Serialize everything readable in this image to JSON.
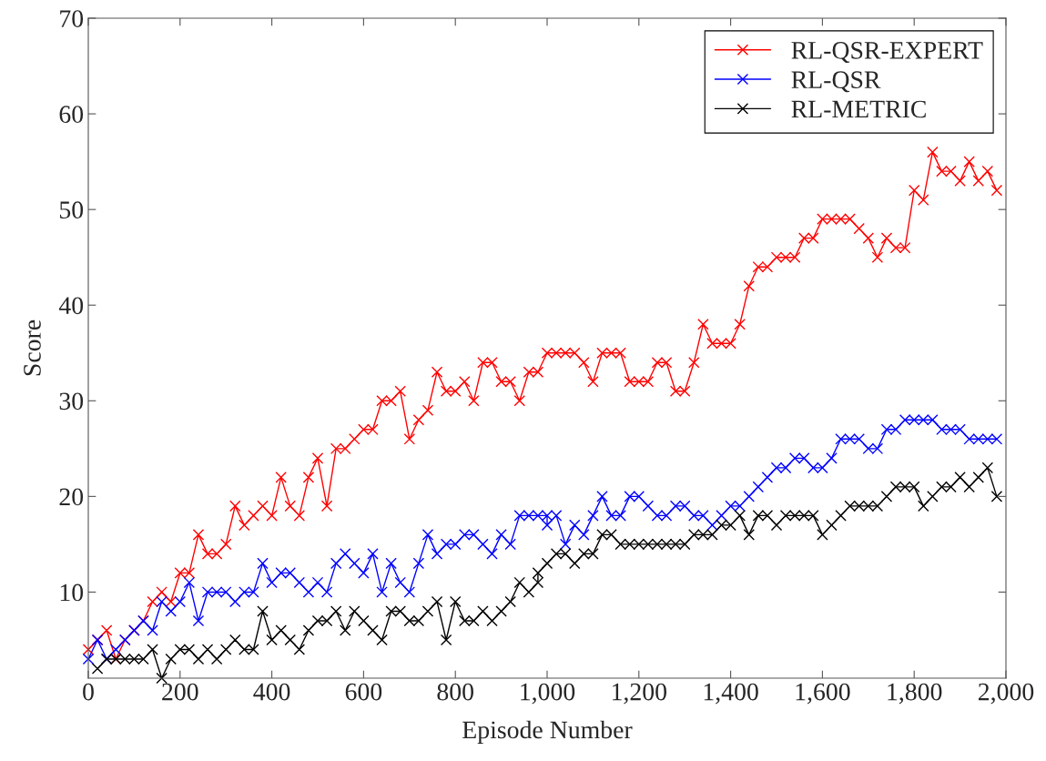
{
  "chart_data": {
    "type": "line",
    "xlabel": "Episode Number",
    "ylabel": "Score",
    "x": [
      0,
      20,
      40,
      60,
      80,
      100,
      120,
      140,
      160,
      180,
      200,
      220,
      240,
      260,
      280,
      300,
      320,
      340,
      360,
      380,
      400,
      420,
      440,
      460,
      480,
      500,
      520,
      540,
      560,
      580,
      600,
      620,
      640,
      660,
      680,
      700,
      720,
      740,
      760,
      780,
      800,
      820,
      840,
      860,
      880,
      900,
      920,
      940,
      960,
      980,
      1000,
      1020,
      1040,
      1060,
      1080,
      1100,
      1120,
      1140,
      1160,
      1180,
      1200,
      1220,
      1240,
      1260,
      1280,
      1300,
      1320,
      1340,
      1360,
      1380,
      1400,
      1420,
      1440,
      1460,
      1480,
      1500,
      1520,
      1540,
      1560,
      1580,
      1600,
      1620,
      1640,
      1660,
      1680,
      1700,
      1720,
      1740,
      1760,
      1780,
      1800,
      1820,
      1840,
      1860,
      1880,
      1900,
      1920,
      1940,
      1960,
      1980
    ],
    "series": [
      {
        "name": "RL-QSR-EXPERT",
        "color": "#ff0000",
        "values": [
          4,
          5,
          6,
          3,
          5,
          6,
          7,
          9,
          10,
          9,
          12,
          12,
          16,
          14,
          14,
          15,
          19,
          17,
          18,
          19,
          18,
          22,
          19,
          18,
          22,
          24,
          19,
          25,
          25,
          26,
          27,
          27,
          30,
          30,
          31,
          26,
          28,
          29,
          33,
          31,
          31,
          32,
          30,
          34,
          34,
          32,
          32,
          30,
          33,
          33,
          35,
          35,
          35,
          35,
          34,
          32,
          35,
          35,
          35,
          32,
          32,
          32,
          34,
          34,
          31,
          31,
          34,
          38,
          36,
          36,
          36,
          38,
          42,
          44,
          44,
          45,
          45,
          45,
          47,
          47,
          49,
          49,
          49,
          49,
          48,
          47,
          45,
          47,
          46,
          46,
          52,
          51,
          56,
          54,
          54,
          53,
          55,
          53,
          54,
          52
        ]
      },
      {
        "name": "RL-QSR",
        "color": "#0000ff",
        "x": [
          0,
          20,
          40,
          60,
          80,
          100,
          120,
          140,
          160,
          180,
          200,
          220,
          240,
          260,
          280,
          300,
          320,
          340,
          360,
          380,
          400,
          420,
          440,
          460,
          480,
          500,
          520,
          540,
          560,
          580,
          600,
          620,
          640,
          660,
          680,
          700,
          720,
          740,
          760,
          780,
          800,
          820,
          840,
          860,
          880,
          900,
          920,
          940,
          960,
          980,
          1000,
          1000,
          1020,
          1040,
          1060,
          1080,
          1100,
          1120,
          1140,
          1160,
          1180,
          1200,
          1220,
          1240,
          1260,
          1280,
          1300,
          1320,
          1340,
          1360,
          1380,
          1400,
          1420,
          1440,
          1460,
          1480,
          1500,
          1520,
          1540,
          1560,
          1580,
          1600,
          1620,
          1640,
          1660,
          1680,
          1700,
          1720,
          1740,
          1760,
          1780,
          1800,
          1820,
          1840,
          1860,
          1880,
          1900,
          1920,
          1940,
          1960,
          1980
        ],
        "values": [
          3,
          5,
          3,
          4,
          5,
          6,
          7,
          6,
          9,
          8,
          9,
          11,
          7,
          10,
          10,
          10,
          9,
          10,
          10,
          13,
          11,
          12,
          12,
          11,
          10,
          11,
          10,
          13,
          14,
          13,
          12,
          14,
          10,
          13,
          11,
          10,
          13,
          16,
          14,
          15,
          15,
          16,
          16,
          15,
          14,
          16,
          15,
          18,
          18,
          18,
          18,
          17,
          18,
          15,
          17,
          16,
          18,
          20,
          18,
          18,
          20,
          20,
          19,
          18,
          18,
          19,
          19,
          18,
          18,
          17,
          18,
          19,
          19,
          20,
          21,
          22,
          23,
          23,
          24,
          24,
          23,
          23,
          24,
          26,
          26,
          26,
          25,
          25,
          27,
          27,
          28,
          28,
          28,
          28,
          27,
          27,
          27,
          26,
          26,
          26,
          26
        ]
      },
      {
        "name": "RL-METRIC",
        "color": "#000000",
        "x": [
          20,
          40,
          60,
          80,
          100,
          120,
          140,
          160,
          180,
          200,
          220,
          240,
          260,
          280,
          300,
          320,
          340,
          360,
          380,
          400,
          420,
          440,
          460,
          480,
          500,
          520,
          540,
          560,
          580,
          600,
          620,
          640,
          660,
          680,
          700,
          720,
          740,
          760,
          780,
          800,
          820,
          840,
          860,
          880,
          900,
          920,
          940,
          960,
          980,
          980,
          1000,
          1020,
          1040,
          1060,
          1080,
          1100,
          1120,
          1140,
          1160,
          1180,
          1200,
          1220,
          1240,
          1260,
          1280,
          1300,
          1320,
          1340,
          1360,
          1380,
          1400,
          1420,
          1440,
          1460,
          1480,
          1500,
          1520,
          1540,
          1560,
          1580,
          1600,
          1620,
          1640,
          1660,
          1680,
          1700,
          1720,
          1740,
          1760,
          1780,
          1800,
          1820,
          1840,
          1860,
          1880,
          1900,
          1920,
          1940,
          1960,
          1980
        ],
        "values": [
          2,
          3,
          3,
          3,
          3,
          3,
          4,
          1,
          3,
          4,
          4,
          3,
          4,
          3,
          4,
          5,
          4,
          4,
          8,
          5,
          6,
          5,
          4,
          6,
          7,
          7,
          8,
          6,
          8,
          7,
          6,
          5,
          8,
          8,
          7,
          7,
          8,
          9,
          5,
          9,
          7,
          7,
          8,
          7,
          8,
          9,
          11,
          10,
          11,
          12,
          13,
          14,
          14,
          13,
          14,
          14,
          16,
          16,
          15,
          15,
          15,
          15,
          15,
          15,
          15,
          15,
          16,
          16,
          16,
          17,
          17,
          18,
          16,
          18,
          18,
          17,
          18,
          18,
          18,
          18,
          16,
          17,
          18,
          19,
          19,
          19,
          19,
          20,
          21,
          21,
          21,
          19,
          20,
          21,
          21,
          22,
          21,
          22,
          23,
          20
        ]
      }
    ],
    "xlim": [
      0,
      2000
    ],
    "xticks": [
      0,
      200,
      400,
      600,
      800,
      {
        "value": 1000,
        "label": "1,000"
      },
      {
        "value": 1200,
        "label": "1,200"
      },
      {
        "value": 1400,
        "label": "1,400"
      },
      {
        "value": 1600,
        "label": "1,600"
      },
      {
        "value": 1800,
        "label": "1,800"
      },
      {
        "value": 2000,
        "label": "2,000"
      }
    ],
    "ylim": [
      1,
      70
    ],
    "yticks": [
      10,
      20,
      30,
      40,
      50,
      60,
      70
    ],
    "marker": "cross",
    "line_style": "solid",
    "legend": "top right",
    "grid": false
  }
}
